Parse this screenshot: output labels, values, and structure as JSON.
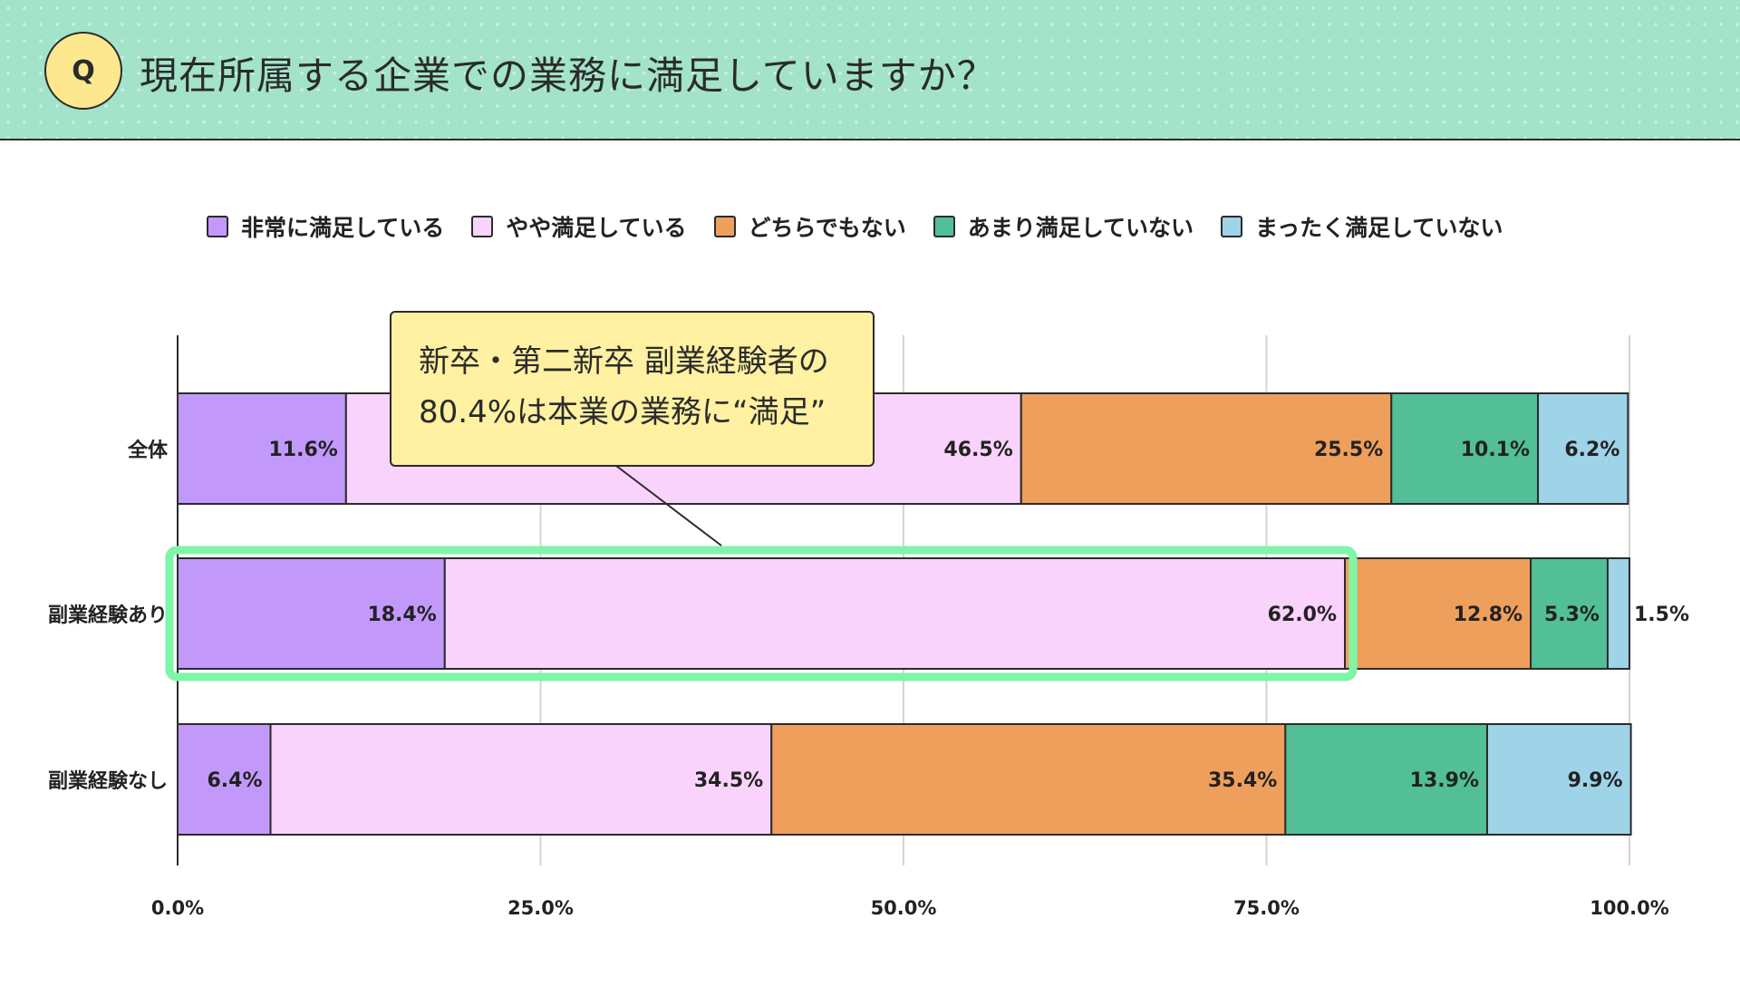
{
  "header": {
    "badge": "Q",
    "title": "現在所属する企業での業務に満足していますか？"
  },
  "chart_data": {
    "type": "bar",
    "orientation": "horizontal",
    "stacked": true,
    "categories": [
      "全体",
      "副業経験あり",
      "副業経験なし"
    ],
    "series": [
      {
        "name": "非常に満足している",
        "color": "#c299fb",
        "values": [
          11.6,
          18.4,
          6.4
        ]
      },
      {
        "name": "やや満足している",
        "color": "#f9d3fb",
        "values": [
          46.5,
          62.0,
          34.5
        ]
      },
      {
        "name": "どちらでもない",
        "color": "#ef9f5c",
        "values": [
          25.5,
          12.8,
          35.4
        ]
      },
      {
        "name": "あまり満足していない",
        "color": "#52bf96",
        "values": [
          10.1,
          5.3,
          13.9
        ]
      },
      {
        "name": "まったく満足していない",
        "color": "#9ed3e8",
        "values": [
          6.2,
          1.5,
          9.9
        ]
      }
    ],
    "xlim": [
      0,
      100
    ],
    "xticks": [
      "0.0%",
      "25.0%",
      "50.0%",
      "75.0%",
      "100.0%"
    ],
    "grid": true,
    "legend_position": "top",
    "highlight": {
      "category": "副業経験あり",
      "series_count": 2,
      "color": "#7ff5a8"
    }
  },
  "callout": {
    "line1": "新卒・第二新卒 副業経験者の",
    "line2": "80.4%は本業の業務に“満足”"
  }
}
